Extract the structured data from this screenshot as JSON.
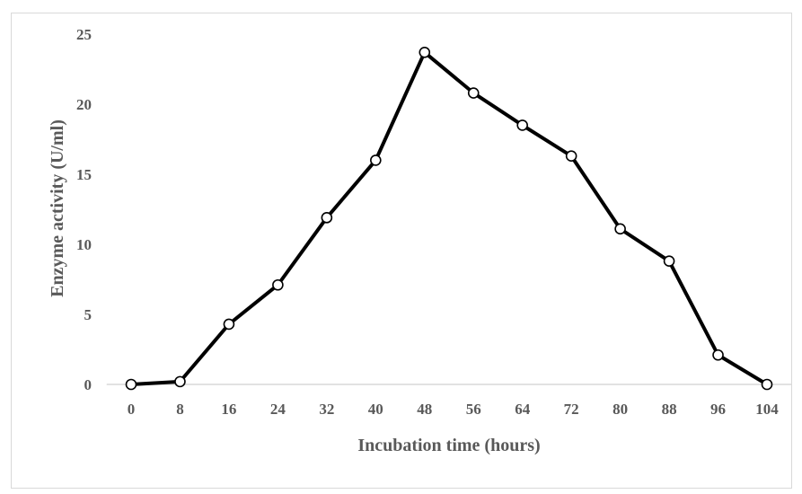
{
  "chart_data": {
    "type": "line",
    "title": "",
    "xlabel": "Incubation time (hours)",
    "ylabel": "Enzyme activity (U/ml)",
    "ylim": [
      0,
      25
    ],
    "yticks": [
      "0",
      "5",
      "10",
      "15",
      "20",
      "25"
    ],
    "categories": [
      "0",
      "8",
      "16",
      "24",
      "32",
      "40",
      "48",
      "56",
      "64",
      "72",
      "80",
      "88",
      "96",
      "104"
    ],
    "series": [
      {
        "values": [
          0,
          0.2,
          4.3,
          7.1,
          11.9,
          16.0,
          23.7,
          20.8,
          18.5,
          16.3,
          11.1,
          8.8,
          2.1,
          0
        ]
      }
    ],
    "grid": false,
    "legend": "none",
    "line_color": "#000000",
    "marker_fill": "#ffffff"
  }
}
